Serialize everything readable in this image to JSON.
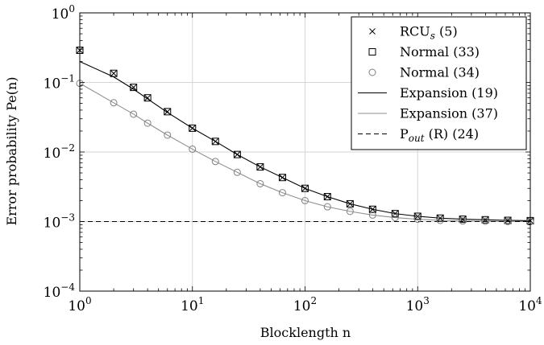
{
  "chart_data": {
    "type": "line",
    "xlabel": "Blocklength n",
    "ylabel": "Error probability Pe(n)",
    "xscale": "log",
    "yscale": "log",
    "xlim": [
      1,
      10000
    ],
    "ylim": [
      0.0001,
      1
    ],
    "x_ticks": [
      {
        "value": 1,
        "base": "10",
        "exp": "0"
      },
      {
        "value": 10,
        "base": "10",
        "exp": "1"
      },
      {
        "value": 100,
        "base": "10",
        "exp": "2"
      },
      {
        "value": 1000,
        "base": "10",
        "exp": "3"
      },
      {
        "value": 10000,
        "base": "10",
        "exp": "4"
      }
    ],
    "y_ticks": [
      {
        "value": 1,
        "base": "10",
        "exp": "0"
      },
      {
        "value": 0.1,
        "base": "10",
        "exp": "−1"
      },
      {
        "value": 0.01,
        "base": "10",
        "exp": "−2"
      },
      {
        "value": 0.001,
        "base": "10",
        "exp": "−3"
      },
      {
        "value": 0.0001,
        "base": "10",
        "exp": "−4"
      }
    ],
    "legend_position": "top-right",
    "series": [
      {
        "name": "RCUs (5)",
        "legend_label": "RCU",
        "legend_sub": "s",
        "legend_suffix": "(5)",
        "style": "cross",
        "color": "#000000",
        "x": [
          1,
          2,
          3,
          4,
          6,
          10,
          16,
          25,
          40,
          63,
          100,
          158,
          251,
          398,
          631,
          1000,
          1585,
          2512,
          3981,
          6310,
          10000
        ],
        "y": [
          0.29,
          0.135,
          0.085,
          0.06,
          0.038,
          0.022,
          0.0142,
          0.0092,
          0.0061,
          0.0043,
          0.003,
          0.00228,
          0.0018,
          0.0015,
          0.0013,
          0.00119,
          0.00112,
          0.00108,
          0.00106,
          0.00104,
          0.00103
        ]
      },
      {
        "name": "Normal (33)",
        "legend_label": "Normal (33)",
        "style": "square",
        "color": "#000000",
        "x": [
          1,
          2,
          3,
          4,
          6,
          10,
          16,
          25,
          40,
          63,
          100,
          158,
          251,
          398,
          631,
          1000,
          1585,
          2512,
          3981,
          6310,
          10000
        ],
        "y": [
          0.29,
          0.135,
          0.085,
          0.06,
          0.038,
          0.022,
          0.0142,
          0.0092,
          0.0061,
          0.0043,
          0.003,
          0.00228,
          0.0018,
          0.0015,
          0.0013,
          0.00119,
          0.00112,
          0.00108,
          0.00106,
          0.00104,
          0.00103
        ]
      },
      {
        "name": "Normal (34)",
        "legend_label": "Normal (34)",
        "style": "circle",
        "color": "#808080",
        "x": [
          1,
          2,
          3,
          4,
          6,
          10,
          16,
          25,
          40,
          63,
          100,
          158,
          251,
          398,
          631,
          1000,
          1585,
          2512,
          3981,
          6310,
          10000
        ],
        "y": [
          0.097,
          0.051,
          0.035,
          0.026,
          0.0175,
          0.011,
          0.0073,
          0.0051,
          0.0035,
          0.0026,
          0.002,
          0.00163,
          0.0014,
          0.00124,
          0.00114,
          0.00108,
          0.00104,
          0.00102,
          0.00101,
          0.001,
          0.001
        ]
      },
      {
        "name": "Expansion (19)",
        "legend_label": "Expansion (19)",
        "style": "solid",
        "color": "#000000",
        "x": [
          1,
          2,
          3,
          4,
          6,
          10,
          16,
          25,
          40,
          63,
          100,
          158,
          251,
          398,
          631,
          1000,
          1585,
          2512,
          3981,
          6310,
          10000
        ],
        "y": [
          0.2,
          0.12,
          0.08,
          0.058,
          0.037,
          0.022,
          0.0142,
          0.0092,
          0.0061,
          0.0043,
          0.003,
          0.00228,
          0.0018,
          0.0015,
          0.0013,
          0.00119,
          0.00112,
          0.00108,
          0.00106,
          0.00104,
          0.00103
        ]
      },
      {
        "name": "Expansion (37)",
        "legend_label": "Expansion (37)",
        "style": "solid",
        "color": "#909090",
        "x": [
          1,
          2,
          3,
          4,
          6,
          10,
          16,
          25,
          40,
          63,
          100,
          158,
          251,
          398,
          631,
          1000,
          1585,
          2512,
          3981,
          6310,
          10000
        ],
        "y": [
          0.097,
          0.051,
          0.035,
          0.026,
          0.0175,
          0.011,
          0.0073,
          0.0051,
          0.0035,
          0.0026,
          0.002,
          0.00163,
          0.0014,
          0.00124,
          0.00114,
          0.00108,
          0.00104,
          0.00102,
          0.00101,
          0.001,
          0.001
        ]
      },
      {
        "name": "Pout(R) (24)",
        "legend_label": "P",
        "legend_sub": "out",
        "legend_suffix": "(R) (24)",
        "style": "dashed",
        "color": "#000000",
        "x": [
          1,
          10000
        ],
        "y": [
          0.001,
          0.001
        ]
      }
    ]
  }
}
